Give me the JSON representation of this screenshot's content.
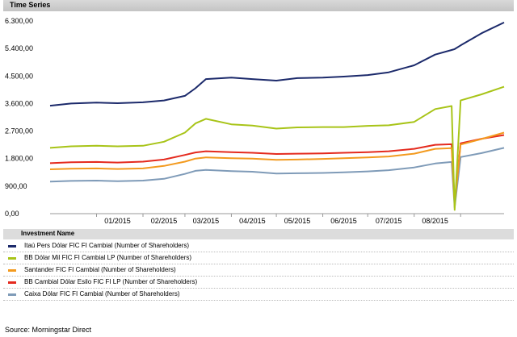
{
  "header": {
    "title": "Time Series"
  },
  "legend": {
    "heading": "Investment Name"
  },
  "source": "Source: Morningstar Direct",
  "chart_data": {
    "type": "line",
    "title": "",
    "xlabel": "",
    "ylabel": "",
    "grid": false,
    "legend_position": "bottom",
    "ylim": [
      0,
      6300
    ],
    "y_ticks": [
      "0,00",
      "900,00",
      "1.800,00",
      "2.700,00",
      "3.600,00",
      "4.500,00",
      "5.400,00",
      "6.300,00"
    ],
    "y_tick_values": [
      0,
      900,
      1800,
      2700,
      3600,
      4500,
      5400,
      6300
    ],
    "x_tick_labels": [
      "01/2015",
      "02/2015",
      "03/2015",
      "04/2015",
      "05/2015",
      "06/2015",
      "07/2015",
      "08/2015"
    ],
    "x": [
      "2014-12-01",
      "2014-12-15",
      "2015-01-01",
      "2015-01-15",
      "2015-02-01",
      "2015-02-15",
      "2015-03-01",
      "2015-03-08",
      "2015-03-15",
      "2015-04-01",
      "2015-04-15",
      "2015-05-01",
      "2015-05-15",
      "2015-06-01",
      "2015-06-15",
      "2015-07-01",
      "2015-07-15",
      "2015-08-01",
      "2015-08-15",
      "2015-08-26",
      "2015-08-28",
      "2015-09-01",
      "2015-09-15",
      "2015-09-30"
    ],
    "series": [
      {
        "name": "Itaú Pers Dólar FIC FI Cambial (Number of Shareholders)",
        "color": "#1c2a6b",
        "values": [
          3530,
          3600,
          3630,
          3610,
          3640,
          3700,
          3850,
          4100,
          4400,
          4450,
          4400,
          4350,
          4430,
          4450,
          4480,
          4530,
          4620,
          4850,
          5200,
          5350,
          5380,
          5500,
          5900,
          6250
        ]
      },
      {
        "name": "BB Dólar Mil FIC FI Cambial LP (Number of Shareholders)",
        "color": "#a8c418",
        "values": [
          2150,
          2200,
          2220,
          2200,
          2220,
          2350,
          2650,
          2950,
          3100,
          2920,
          2880,
          2780,
          2820,
          2830,
          2830,
          2870,
          2890,
          3000,
          3420,
          3520,
          120,
          3700,
          3900,
          4150
        ]
      },
      {
        "name": "Santander FIC FI Cambial (Number of Shareholders)",
        "color": "#f39a1e",
        "values": [
          1450,
          1470,
          1480,
          1460,
          1480,
          1560,
          1700,
          1800,
          1840,
          1810,
          1800,
          1760,
          1770,
          1790,
          1810,
          1840,
          1870,
          1960,
          2120,
          2140,
          300,
          2260,
          2440,
          2650
        ]
      },
      {
        "name": "BB Cambial Dólar Esilo FIC FI LP (Number of Shareholders)",
        "color": "#e42a1e",
        "values": [
          1650,
          1680,
          1690,
          1670,
          1700,
          1770,
          1920,
          2000,
          2040,
          2010,
          1990,
          1950,
          1960,
          1970,
          1990,
          2010,
          2040,
          2120,
          2250,
          2270,
          350,
          2300,
          2450,
          2570
        ]
      },
      {
        "name": "Caixa Dólar FIC FI Cambial (Number of Shareholders)",
        "color": "#7f9bb8",
        "values": [
          1050,
          1070,
          1080,
          1060,
          1080,
          1140,
          1300,
          1400,
          1430,
          1390,
          1370,
          1310,
          1320,
          1330,
          1350,
          1380,
          1420,
          1510,
          1640,
          1690,
          200,
          1850,
          1980,
          2150
        ]
      }
    ]
  }
}
